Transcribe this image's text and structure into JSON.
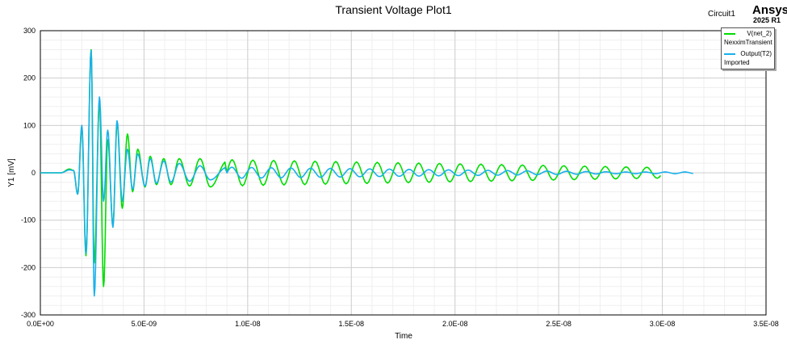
{
  "chart_data": {
    "type": "line",
    "title": "Transient Voltage Plot1",
    "xlabel": "Time",
    "ylabel": "Y1 [mV]",
    "xlim": [
      0,
      3.5e-08
    ],
    "ylim": [
      -300,
      300
    ],
    "xticks": [
      0,
      5e-09,
      1e-08,
      1.5e-08,
      2e-08,
      2.5e-08,
      3e-08,
      3.5e-08
    ],
    "xtick_labels": [
      "0.0E+00",
      "5.0E-09",
      "1.0E-08",
      "1.5E-08",
      "2.0E-08",
      "2.5E-08",
      "3.0E-08",
      "3.5E-08"
    ],
    "yticks": [
      -300,
      -200,
      -100,
      0,
      100,
      200,
      300
    ],
    "ytick_labels": [
      "-300",
      "-200",
      "-100",
      "0",
      "100",
      "200",
      "300"
    ],
    "grid": true,
    "legend_position": "top-right",
    "series": [
      {
        "name": "V(net_2)",
        "source": "NexximTransient",
        "color": "#00dd00",
        "x_end": 3e-08,
        "x": [
          0,
          1e-09,
          1.4e-09,
          1.6e-09,
          1.8e-09,
          2e-09,
          2.2e-09,
          2.45e-09,
          2.6e-09,
          2.85e-09,
          3.05e-09,
          3.25e-09,
          3.5e-09,
          3.7e-09,
          3.95e-09,
          4.2e-09,
          4.45e-09,
          4.7e-09,
          5.05e-09,
          5.3e-09,
          5.6e-09,
          5.95e-09,
          6.3e-09,
          6.7e-09,
          7.2e-09,
          7.7e-09,
          8.2e-09,
          9e-09,
          1e-08,
          1.2e-08,
          1.5e-08,
          1.8e-08,
          2.1e-08,
          2.4e-08,
          2.7e-08,
          3e-08
        ],
        "y": [
          0,
          0,
          8,
          5,
          -45,
          95,
          -175,
          260,
          -190,
          150,
          -240,
          70,
          -110,
          105,
          -75,
          82,
          -40,
          50,
          -30,
          35,
          -25,
          30,
          -25,
          30,
          -28,
          30,
          -30,
          25,
          -25,
          20,
          -20,
          20,
          -20,
          15,
          -15,
          5
        ]
      },
      {
        "name": "Output(T2)",
        "source": "Imported",
        "color": "#19b0ec",
        "x_end": 3.15e-08,
        "x": [
          0,
          1e-09,
          1.4e-09,
          1.6e-09,
          1.8e-09,
          2e-09,
          2.2e-09,
          2.45e-09,
          2.6e-09,
          2.85e-09,
          3.05e-09,
          3.25e-09,
          3.5e-09,
          3.7e-09,
          3.95e-09,
          4.2e-09,
          4.45e-09,
          4.7e-09,
          5.05e-09,
          5.3e-09,
          5.6e-09,
          5.95e-09,
          6.3e-09,
          6.7e-09,
          7.2e-09,
          7.7e-09,
          8.2e-09,
          9e-09,
          1e-08,
          1.2e-08,
          1.5e-08,
          1.8e-08,
          2.1e-08,
          2.4e-08,
          2.7e-08,
          3.15e-08
        ],
        "y": [
          0,
          0,
          6,
          5,
          -45,
          100,
          -170,
          258,
          -260,
          160,
          -60,
          90,
          -115,
          110,
          -60,
          50,
          -35,
          40,
          -28,
          30,
          -22,
          25,
          -20,
          20,
          -18,
          15,
          -15,
          12,
          -10,
          8,
          -5,
          5,
          -3,
          2,
          -2,
          0
        ]
      }
    ]
  },
  "header": {
    "circuit_label": "Circuit1",
    "brand": "Ansys",
    "version": "2025 R1"
  }
}
